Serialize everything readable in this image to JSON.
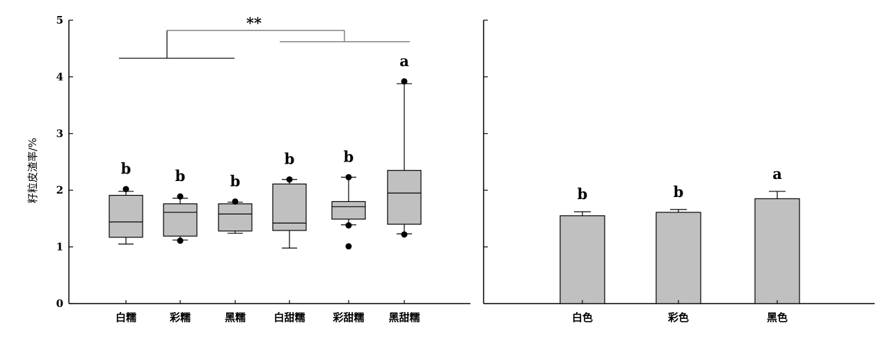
{
  "chart_data": [
    {
      "type": "box",
      "ylabel": "籽粒皮渣率/%",
      "ylim": [
        0,
        5
      ],
      "yticks": [
        0,
        1,
        2,
        3,
        4,
        5
      ],
      "categories": [
        "白糯",
        "彩糯",
        "黑糯",
        "白甜糯",
        "彩甜糯",
        "黑甜糯"
      ],
      "boxes": [
        {
          "whisker_low": 1.05,
          "q1": 1.17,
          "median": 1.44,
          "q3": 1.91,
          "whisker_high": 1.98,
          "outliers": [
            2.02
          ],
          "letter": "b"
        },
        {
          "whisker_low": 1.12,
          "q1": 1.19,
          "median": 1.61,
          "q3": 1.76,
          "whisker_high": 1.86,
          "outliers": [
            1.11,
            1.89
          ],
          "letter": "b"
        },
        {
          "whisker_low": 1.24,
          "q1": 1.28,
          "median": 1.58,
          "q3": 1.76,
          "whisker_high": 1.79,
          "outliers": [
            1.8
          ],
          "letter": "b"
        },
        {
          "whisker_low": 0.98,
          "q1": 1.29,
          "median": 1.42,
          "q3": 2.11,
          "whisker_high": 2.19,
          "outliers": [
            2.19
          ],
          "letter": "b"
        },
        {
          "whisker_low": 1.39,
          "q1": 1.49,
          "median": 1.71,
          "q3": 1.8,
          "whisker_high": 2.23,
          "outliers": [
            1.01,
            1.38,
            2.23
          ],
          "letter": "b"
        },
        {
          "whisker_low": 1.23,
          "q1": 1.4,
          "median": 1.95,
          "q3": 2.35,
          "whisker_high": 3.88,
          "outliers": [
            1.22,
            3.92
          ],
          "letter": "a"
        }
      ],
      "significance": {
        "label": "**",
        "group1": {
          "from": 0,
          "to": 2,
          "y": 4.33
        },
        "group2": {
          "from": 3,
          "to": 5,
          "y": 4.62
        },
        "top_y": 4.82
      },
      "grid": false
    },
    {
      "type": "bar",
      "ylim": [
        0,
        5
      ],
      "categories": [
        "白色",
        "彩色",
        "黑色"
      ],
      "values": [
        1.55,
        1.61,
        1.85
      ],
      "errors": [
        0.07,
        0.05,
        0.13
      ],
      "letters": [
        "b",
        "b",
        "a"
      ],
      "grid": false
    }
  ],
  "colors": {
    "box_fill": "#c0c0c0",
    "bar_fill": "#c0c0c0",
    "axis": "#000000",
    "bracket2": "#808080"
  }
}
